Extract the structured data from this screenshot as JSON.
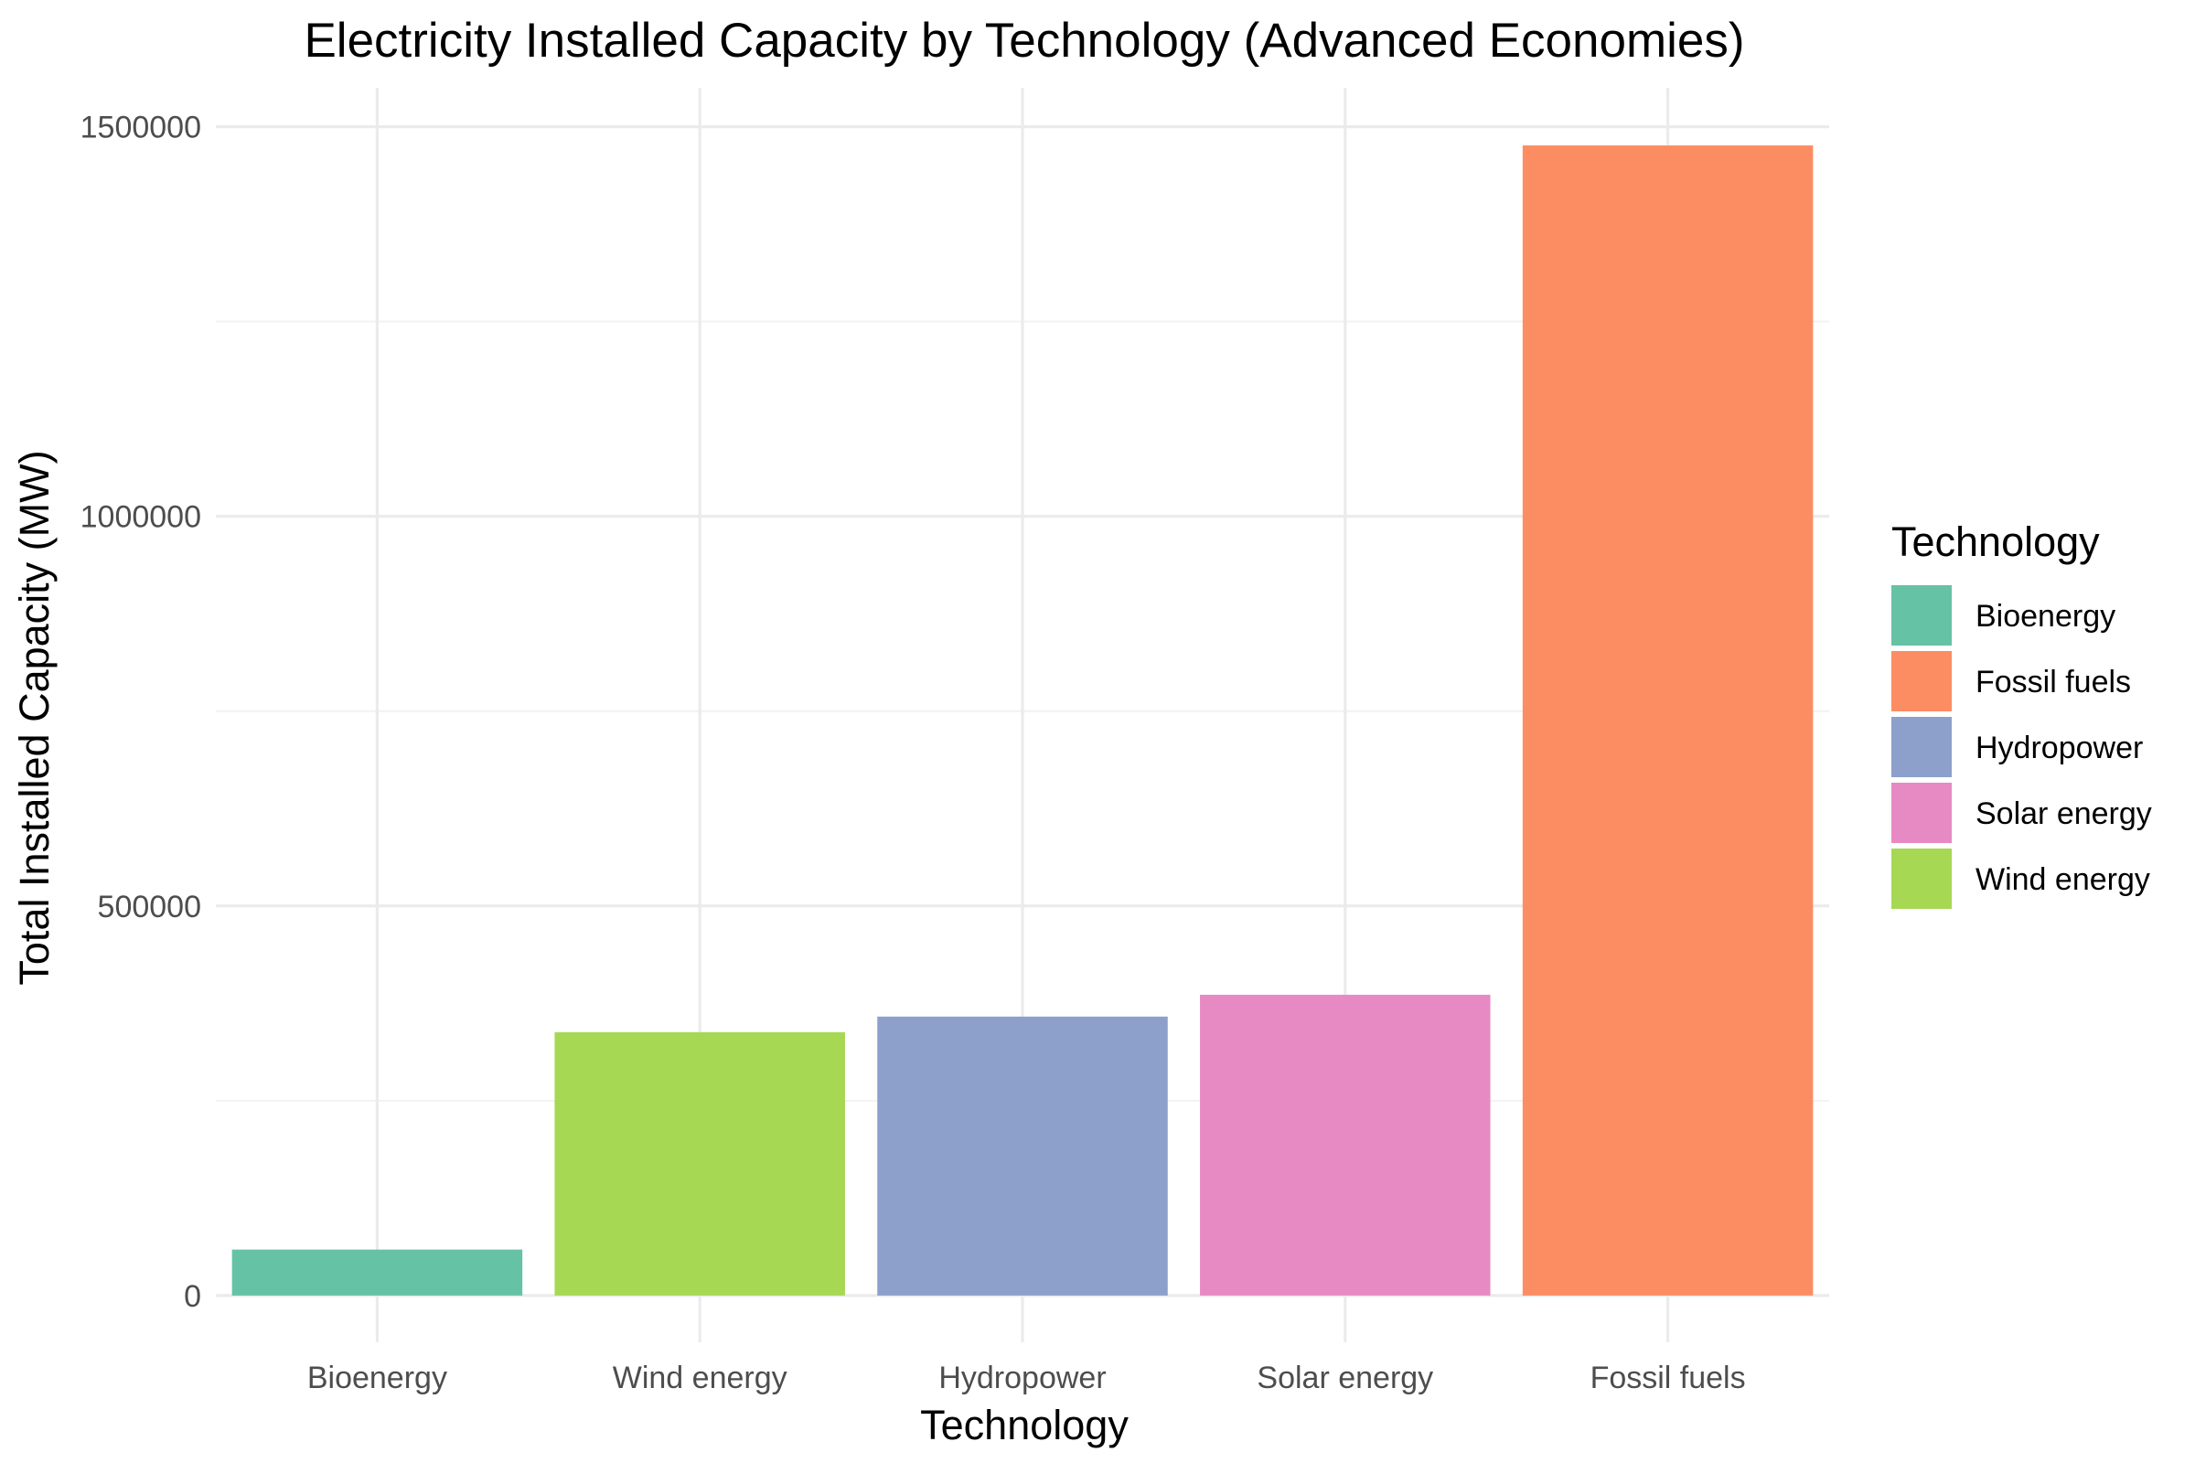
{
  "chart_data": {
    "type": "bar",
    "title": "Electricity Installed Capacity by Technology (Advanced Economies)",
    "xlabel": "Technology",
    "ylabel": "Total Installed Capacity (MW)",
    "categories": [
      "Bioenergy",
      "Wind energy",
      "Hydropower",
      "Solar energy",
      "Fossil fuels"
    ],
    "values": [
      59000,
      338000,
      358000,
      386000,
      1476000
    ],
    "colors": [
      "#66c2a5",
      "#a6d854",
      "#8da0cb",
      "#e78ac3",
      "#fc8d62"
    ],
    "ylim": [
      -60000,
      1550000
    ],
    "y_ticks": [
      0,
      500000,
      1000000,
      1500000
    ],
    "y_tick_labels": [
      "0",
      "500000",
      "1000000",
      "1500000"
    ],
    "grid": true,
    "legend": {
      "title": "Technology",
      "placement": "right",
      "items": [
        {
          "label": "Bioenergy",
          "color": "#66c2a5"
        },
        {
          "label": "Fossil fuels",
          "color": "#fc8d62"
        },
        {
          "label": "Hydropower",
          "color": "#8da0cb"
        },
        {
          "label": "Solar energy",
          "color": "#e78ac3"
        },
        {
          "label": "Wind energy",
          "color": "#a6d854"
        }
      ]
    }
  }
}
